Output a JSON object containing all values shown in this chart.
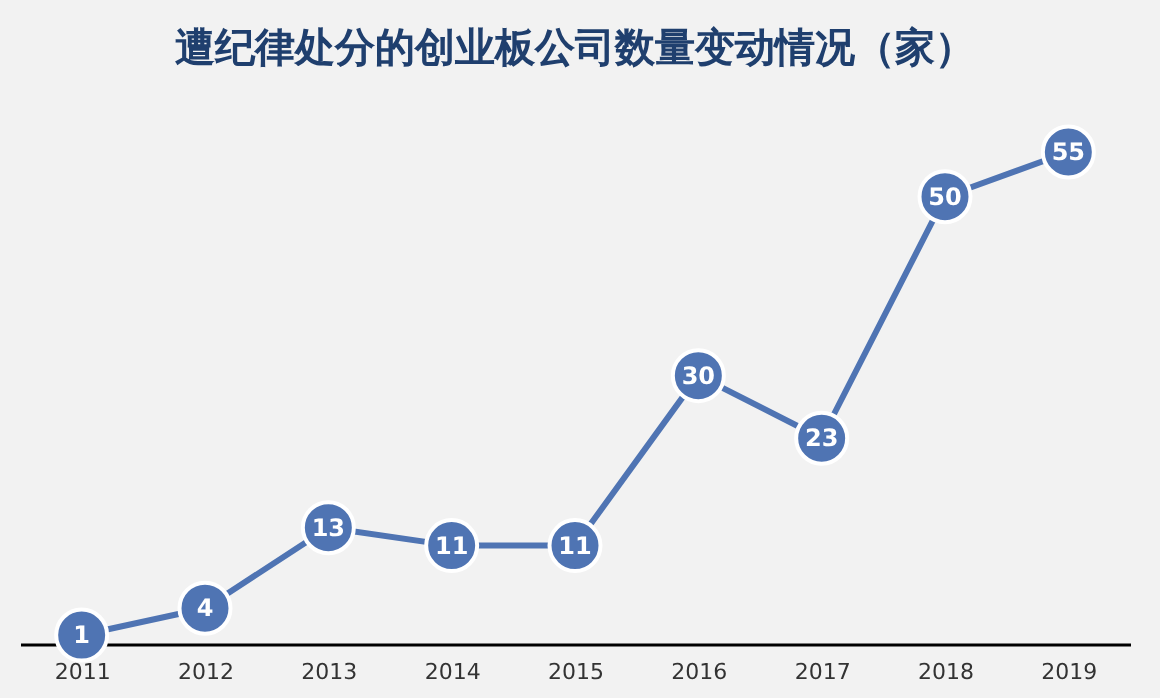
{
  "chart_data": {
    "type": "line",
    "title": "遭纪律处分的创业板公司数量变动情况（家）",
    "categories": [
      "2011",
      "2012",
      "2013",
      "2014",
      "2015",
      "2016",
      "2017",
      "2018",
      "2019"
    ],
    "series": [
      {
        "color": "#4f74b3",
        "values": [
          1,
          4,
          13,
          11,
          11,
          30,
          23,
          50,
          55
        ]
      }
    ],
    "data_labels": true,
    "marker": "circle",
    "line_style": "solid",
    "grid": false,
    "tick_labels": "x"
  }
}
